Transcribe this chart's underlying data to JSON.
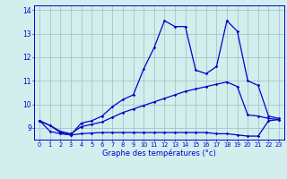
{
  "title": "Graphe des températures (°c)",
  "bg_color": "#d4eeed",
  "line_color": "#0000cc",
  "grid_color": "#a0c8c8",
  "hours": [
    0,
    1,
    2,
    3,
    4,
    5,
    6,
    7,
    8,
    9,
    10,
    11,
    12,
    13,
    14,
    15,
    16,
    17,
    18,
    19,
    20,
    21,
    22,
    23
  ],
  "line1": [
    9.3,
    9.1,
    8.8,
    8.7,
    9.2,
    9.3,
    9.5,
    9.9,
    10.2,
    10.4,
    11.5,
    12.4,
    13.55,
    13.3,
    13.3,
    11.45,
    11.3,
    11.6,
    13.55,
    13.1,
    11.0,
    10.8,
    9.5,
    9.4
  ],
  "line2": [
    9.3,
    9.1,
    8.85,
    8.75,
    9.05,
    9.15,
    9.25,
    9.45,
    9.65,
    9.8,
    9.95,
    10.1,
    10.25,
    10.4,
    10.55,
    10.65,
    10.75,
    10.85,
    10.95,
    10.75,
    9.55,
    9.5,
    9.4,
    9.35
  ],
  "line3": [
    9.3,
    8.85,
    8.75,
    8.7,
    8.75,
    8.78,
    8.8,
    8.8,
    8.8,
    8.8,
    8.8,
    8.8,
    8.8,
    8.8,
    8.8,
    8.8,
    8.8,
    8.75,
    8.75,
    8.7,
    8.65,
    8.65,
    9.3,
    9.35
  ],
  "ylim": [
    8.5,
    14.2
  ],
  "yticks": [
    9,
    10,
    11,
    12,
    13,
    14
  ],
  "xticks": [
    0,
    1,
    2,
    3,
    4,
    5,
    6,
    7,
    8,
    9,
    10,
    11,
    12,
    13,
    14,
    15,
    16,
    17,
    18,
    19,
    20,
    21,
    22,
    23
  ],
  "xlabel_fontsize": 6.0,
  "ytick_fontsize": 5.5,
  "xtick_fontsize": 4.8
}
